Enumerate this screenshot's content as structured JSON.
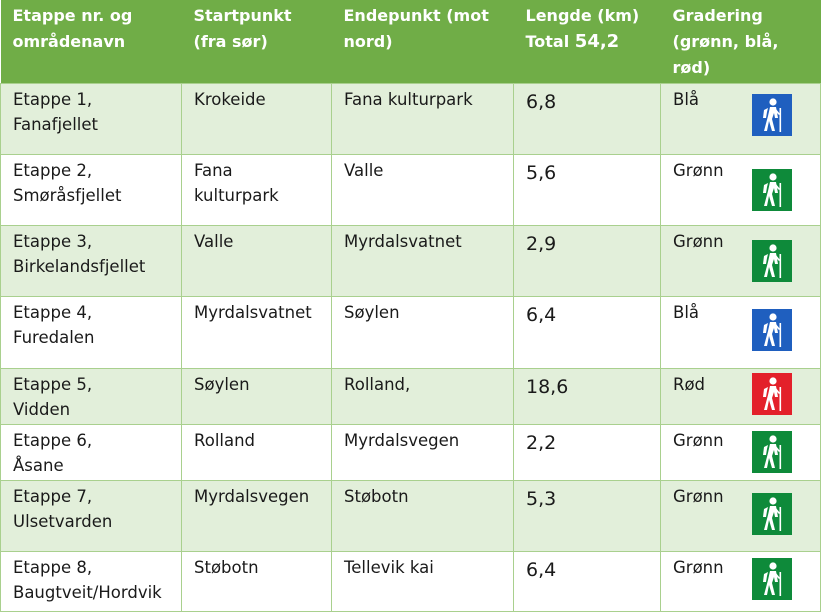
{
  "header": {
    "col1": [
      "Etappe nr. og",
      "områdenavn"
    ],
    "col2": [
      "Startpunkt",
      "(fra sør)"
    ],
    "col3": [
      "Endepunkt (mot",
      "nord)"
    ],
    "col4_line1": "Lengde (km)",
    "col4_total_label": "Total",
    "col4_total_value": "54,2",
    "col5": [
      "Gradering",
      "(grønn, blå,",
      "rød)"
    ]
  },
  "colors": {
    "header_bg": "#70ad47",
    "band": "#e2efda",
    "blue": "#1f5fbf",
    "green": "#0e8a3a",
    "red": "#e3202a"
  },
  "rows": [
    {
      "stage": [
        "Etappe 1,",
        "Fanafjellet"
      ],
      "start": [
        "Krokeide"
      ],
      "end": [
        "Fana kulturpark"
      ],
      "length": "6,8",
      "grade": "Blå",
      "icon": "hiker-blue-icon"
    },
    {
      "stage": [
        "Etappe 2,",
        "Smøråsfjellet"
      ],
      "start": [
        "Fana",
        "kulturpark"
      ],
      "end": [
        "Valle"
      ],
      "length": "5,6",
      "grade": "Grønn",
      "icon": "hiker-green-icon"
    },
    {
      "stage": [
        "Etappe 3,",
        "Birkelandsfjellet"
      ],
      "start": [
        "Valle"
      ],
      "end": [
        "Myrdalsvatnet"
      ],
      "length": "2,9",
      "grade": "Grønn",
      "icon": "hiker-green-icon"
    },
    {
      "stage": [
        "Etappe 4,",
        "Furedalen"
      ],
      "start": [
        "Myrdalsvatnet"
      ],
      "end": [
        "Søylen"
      ],
      "length": "6,4",
      "grade": "Blå",
      "icon": "hiker-blue-icon"
    },
    {
      "stage": [
        "Etappe 5,",
        "Vidden"
      ],
      "start": [
        "Søylen"
      ],
      "end": [
        "Rolland,"
      ],
      "length": "18,6",
      "grade": "Rød",
      "icon": "hiker-red-icon"
    },
    {
      "stage": [
        "Etappe 6,",
        "Åsane"
      ],
      "start": [
        "Rolland"
      ],
      "end": [
        "Myrdalsvegen"
      ],
      "length": "2,2",
      "grade": "Grønn",
      "icon": "hiker-green-icon"
    },
    {
      "stage": [
        "Etappe 7,",
        "Ulsetvarden"
      ],
      "start": [
        "Myrdalsvegen"
      ],
      "end": [
        "Støbotn"
      ],
      "length": "5,3",
      "grade": "Grønn",
      "icon": "hiker-green-icon"
    },
    {
      "stage": [
        "Etappe 8,",
        "Baugtveit/Hordvik"
      ],
      "start": [
        "Støbotn"
      ],
      "end": [
        "Tellevik kai"
      ],
      "length": "6,4",
      "grade": "Grønn",
      "icon": "hiker-green-icon"
    }
  ]
}
